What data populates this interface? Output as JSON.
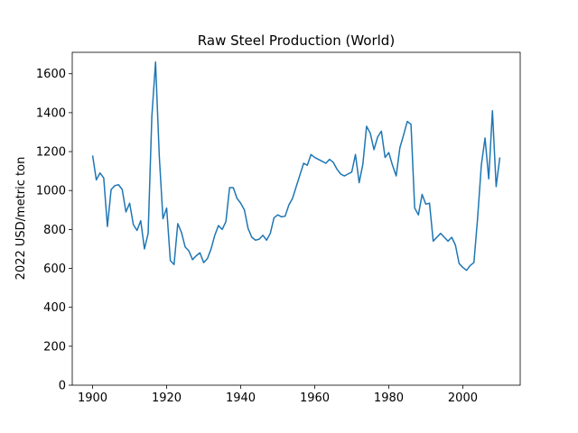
{
  "chart_data": {
    "type": "line",
    "title": "Raw Steel Production (World)",
    "xlabel": "",
    "ylabel": "2022 USD/metric ton",
    "xlim": [
      1894.5,
      2015.5
    ],
    "ylim": [
      0,
      1710
    ],
    "x_ticks": [
      1900,
      1920,
      1940,
      1960,
      1980,
      2000
    ],
    "y_ticks": [
      0,
      200,
      400,
      600,
      800,
      1000,
      1200,
      1400,
      1600
    ],
    "grid": false,
    "series": [
      {
        "color": "#1f77b4",
        "x": [
          1900,
          1901,
          1902,
          1903,
          1904,
          1905,
          1906,
          1907,
          1908,
          1909,
          1910,
          1911,
          1912,
          1913,
          1914,
          1915,
          1916,
          1917,
          1918,
          1919,
          1920,
          1921,
          1922,
          1923,
          1924,
          1925,
          1926,
          1927,
          1928,
          1929,
          1930,
          1931,
          1932,
          1933,
          1934,
          1935,
          1936,
          1937,
          1938,
          1939,
          1940,
          1941,
          1942,
          1943,
          1944,
          1945,
          1946,
          1947,
          1948,
          1949,
          1950,
          1951,
          1952,
          1953,
          1954,
          1955,
          1956,
          1957,
          1958,
          1959,
          1960,
          1961,
          1962,
          1963,
          1964,
          1965,
          1966,
          1967,
          1968,
          1969,
          1970,
          1971,
          1972,
          1973,
          1974,
          1975,
          1976,
          1977,
          1978,
          1979,
          1980,
          1981,
          1982,
          1983,
          1984,
          1985,
          1986,
          1987,
          1988,
          1989,
          1990,
          1991,
          1992,
          1993,
          1994,
          1995,
          1996,
          1997,
          1998,
          1999,
          2000,
          2001,
          2002,
          2003,
          2004,
          2005,
          2006,
          2007,
          2008,
          2009,
          2010
        ],
        "values": [
          1180,
          1055,
          1090,
          1065,
          815,
          1005,
          1025,
          1030,
          1005,
          890,
          935,
          825,
          795,
          845,
          700,
          780,
          1380,
          1660,
          1180,
          855,
          910,
          640,
          620,
          830,
          785,
          710,
          690,
          645,
          665,
          680,
          630,
          650,
          700,
          770,
          820,
          800,
          840,
          1015,
          1015,
          960,
          935,
          900,
          805,
          760,
          745,
          750,
          770,
          745,
          780,
          860,
          875,
          865,
          868,
          925,
          960,
          1020,
          1080,
          1140,
          1130,
          1185,
          1170,
          1160,
          1150,
          1140,
          1160,
          1145,
          1110,
          1085,
          1075,
          1085,
          1095,
          1185,
          1040,
          1135,
          1330,
          1295,
          1210,
          1275,
          1305,
          1170,
          1195,
          1130,
          1075,
          1220,
          1285,
          1355,
          1340,
          910,
          875,
          980,
          930,
          935,
          740,
          760,
          780,
          760,
          740,
          760,
          720,
          625,
          605,
          590,
          615,
          630,
          860,
          1130,
          1270,
          1060,
          1410,
          1020,
          1170
        ]
      }
    ]
  }
}
